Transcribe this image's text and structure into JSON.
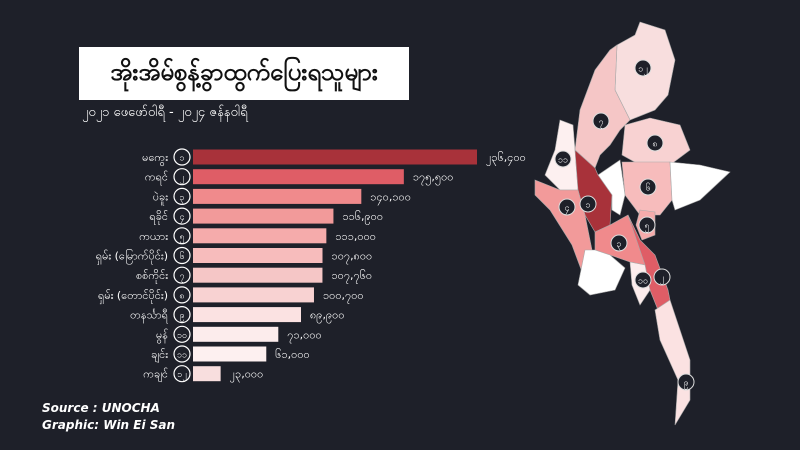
{
  "chart_data": {
    "type": "bar",
    "orientation": "horizontal",
    "title": "အိုးအိမ်စွန့်ခွာထွက်ပြေးရသူများ",
    "subtitle": "၂၀၂၁ ဖေဖော်ဝါရီ - ၂၀၂၄ ဇန်နဝါရီ",
    "categories": [
      "မကွေး",
      "ကရင်",
      "ပဲခူး",
      "ရခိုင်",
      "ကယား",
      "ရှမ်း (မြောက်ပိုင်း)",
      "စစ်ကိုင်း",
      "ရှမ်း (တောင်ပိုင်း)",
      "တနင်္သာရီ",
      "မွန်",
      "ချင်း",
      "ကချင်"
    ],
    "ranks": [
      "၁",
      "၂",
      "၃",
      "၄",
      "၅",
      "၆",
      "၇",
      "၈",
      "၉",
      "၁၀",
      "၁၁",
      "၁၂"
    ],
    "values": [
      236400,
      175500,
      140100,
      116900,
      111000,
      107800,
      107760,
      100700,
      89900,
      71000,
      61000,
      23000
    ],
    "value_labels": [
      "၂၃၆,၄၀၀",
      "၁၇၅,၅၀၀",
      "၁၄၀,၁၀၀",
      "၁၁၆,၉၀၀",
      "၁၁၁,၀၀၀",
      "၁၀၇,၈၀၀",
      "၁၀၇,၇၆၀",
      "၁၀၀,၇၀၀",
      "၈၉,၉၀၀",
      "၇၁,၀၀၀",
      "၆၁,၀၀၀",
      "၂၃,၀၀၀"
    ],
    "colors": [
      "#a8323a",
      "#df5d66",
      "#f08a8c",
      "#f29a9a",
      "#f5abab",
      "#f7bcbc",
      "#f5c6c6",
      "#f8d2d2",
      "#fbe2e2",
      "#fcecec",
      "#fdf0f0",
      "#f8dede"
    ],
    "grid": false,
    "legend": "none"
  },
  "source": "Source : UNOCHA",
  "credit": "Graphic: Win Ei San",
  "map": {
    "background": "#1e2029",
    "unranked_color": "#ffffff"
  }
}
